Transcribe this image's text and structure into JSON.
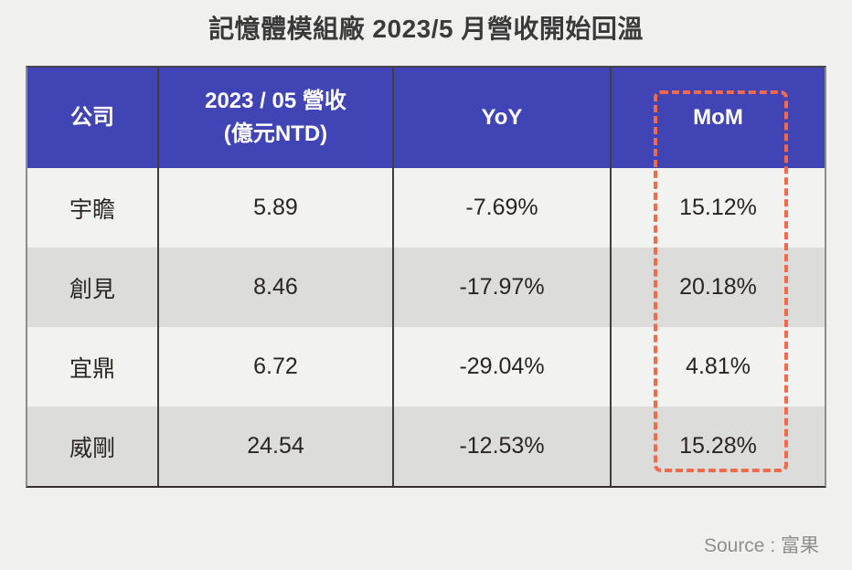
{
  "title": "記憶體模組廠 2023/5 月營收開始回溫",
  "header": {
    "company": "公司",
    "revenue_line1": "2023 / 05 營收",
    "revenue_line2": "(億元NTD)",
    "yoy": "YoY",
    "mom": "MoM"
  },
  "rows": [
    {
      "company": "宇瞻",
      "revenue": "5.89",
      "yoy": "-7.69%",
      "mom": "15.12%"
    },
    {
      "company": "創見",
      "revenue": "8.46",
      "yoy": "-17.97%",
      "mom": "20.18%"
    },
    {
      "company": "宜鼎",
      "revenue": "6.72",
      "yoy": "-29.04%",
      "mom": "4.81%"
    },
    {
      "company": "威剛",
      "revenue": "24.54",
      "yoy": "-12.53%",
      "mom": "15.28%"
    }
  ],
  "source": "Source : 富果",
  "colors": {
    "header_bg": "#4144b4",
    "header_text": "#ffffff",
    "row_light": "#f2f2f0",
    "row_dark": "#dcdcda",
    "highlight_dash": "#f2694c",
    "page_bg": "#f0f0ee",
    "body_text": "#2b2521",
    "source_text": "#8f8f8f"
  },
  "chart_data": {
    "type": "table",
    "title": "記憶體模組廠 2023/5 月營收開始回溫",
    "columns": [
      "公司",
      "2023 / 05 營收 (億元NTD)",
      "YoY",
      "MoM"
    ],
    "rows": [
      [
        "宇瞻",
        5.89,
        "-7.69%",
        "15.12%"
      ],
      [
        "創見",
        8.46,
        "-17.97%",
        "20.18%"
      ],
      [
        "宜鼎",
        6.72,
        "-29.04%",
        "4.81%"
      ],
      [
        "威剛",
        24.54,
        "-12.53%",
        "15.28%"
      ]
    ],
    "annotations": [
      "MoM column highlighted with orange dashed rectangle"
    ],
    "source": "Source : 富果"
  }
}
